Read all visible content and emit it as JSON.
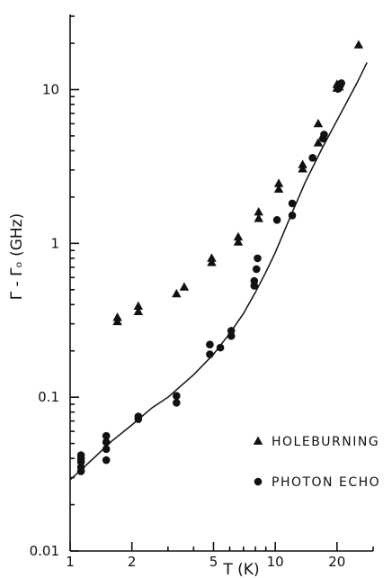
{
  "chart_data": {
    "type": "scatter",
    "xscale": "log",
    "yscale": "log",
    "xlim": [
      1,
      30
    ],
    "ylim": [
      0.01,
      30
    ],
    "x_ticks": [
      1,
      2,
      5,
      10,
      20
    ],
    "x_tick_labels": [
      "1",
      "2",
      "5",
      "10",
      "20"
    ],
    "y_ticks": [
      0.01,
      0.1,
      1,
      10
    ],
    "y_tick_labels": [
      "0.01",
      "0.1",
      "1",
      "10"
    ],
    "xlabel": "T (K)",
    "ylabel": "Γ - Γₒ (GHz)",
    "grid": false,
    "legend_position": "bottom-right",
    "series": [
      {
        "name": "HOLEBURNING",
        "marker": "triangle",
        "color": "#111111",
        "x": [
          1.7,
          1.7,
          2.15,
          2.15,
          3.3,
          3.6,
          4.9,
          4.9,
          6.6,
          6.6,
          8.3,
          8.3,
          10.4,
          10.4,
          13.6,
          13.6,
          16.2,
          16.2,
          20.0,
          20.0,
          20.5,
          25.5
        ],
        "y": [
          0.31,
          0.33,
          0.36,
          0.39,
          0.47,
          0.52,
          0.75,
          0.8,
          1.02,
          1.1,
          1.45,
          1.6,
          2.25,
          2.45,
          3.05,
          3.25,
          4.5,
          6.0,
          10.2,
          10.8,
          10.4,
          19.5
        ]
      },
      {
        "name": "PHOTON ECHO",
        "marker": "circle",
        "color": "#111111",
        "x": [
          1.13,
          1.13,
          1.13,
          1.13,
          1.13,
          1.5,
          1.5,
          1.5,
          1.5,
          2.15,
          2.15,
          3.3,
          3.3,
          4.8,
          4.8,
          5.4,
          6.1,
          6.1,
          7.9,
          7.9,
          8.1,
          8.2,
          10.2,
          12.1,
          12.1,
          15.2,
          17.1,
          17.3,
          20.2,
          20.7,
          21.0
        ],
        "y": [
          0.033,
          0.035,
          0.038,
          0.04,
          0.042,
          0.039,
          0.046,
          0.051,
          0.056,
          0.072,
          0.075,
          0.092,
          0.102,
          0.19,
          0.22,
          0.21,
          0.25,
          0.27,
          0.53,
          0.57,
          0.68,
          0.8,
          1.42,
          1.52,
          1.82,
          3.6,
          4.8,
          5.1,
          10.1,
          10.6,
          11.0
        ]
      },
      {
        "name": "",
        "marker": "none",
        "line": "solid",
        "color": "#111111",
        "x": [
          1,
          1.3,
          1.6,
          2,
          2.5,
          3,
          4,
          5,
          6,
          7,
          8,
          9,
          10,
          12,
          14,
          17,
          20,
          25,
          28
        ],
        "y": [
          0.029,
          0.04,
          0.052,
          0.066,
          0.085,
          0.1,
          0.14,
          0.19,
          0.26,
          0.35,
          0.48,
          0.65,
          0.87,
          1.55,
          2.5,
          4.2,
          6.3,
          11.0,
          15.0
        ]
      }
    ]
  }
}
